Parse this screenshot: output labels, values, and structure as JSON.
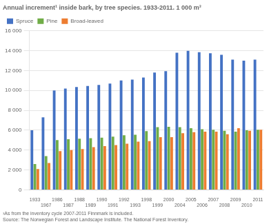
{
  "chart_data": {
    "type": "bar",
    "title": "Annual increment¹ inside bark, by tree species. 1933-2011. 1 000 m³",
    "annotations": [
      "¹As from the inventory cycle 2007-2011 Finnmark is included.",
      "Source: The Norwegian Forest and Landscape Institute. The National Forest Inventory."
    ],
    "categories": [
      "1933",
      "1967",
      "1986",
      "1987",
      "1988",
      "1989",
      "1990",
      "1991",
      "1992",
      "1993",
      "1998",
      "1999",
      "2000",
      "2004",
      "2005",
      "2006",
      "2007",
      "2008",
      "2009",
      "2010",
      "2011"
    ],
    "series": [
      {
        "name": "Spruce",
        "color": "#4472C4",
        "values": [
          6000,
          7300,
          10000,
          10200,
          10350,
          10450,
          10550,
          10700,
          11000,
          11100,
          11300,
          11800,
          11950,
          13800,
          14000,
          13850,
          13750,
          13600,
          13100,
          13000,
          13100
        ]
      },
      {
        "name": "Pine",
        "color": "#70AD47",
        "values": [
          2600,
          3400,
          5000,
          5100,
          5150,
          5200,
          5250,
          5350,
          5500,
          5550,
          5900,
          6300,
          6350,
          6300,
          6200,
          6100,
          6050,
          5950,
          5850,
          6000,
          6050
        ]
      },
      {
        "name": "Broad-leaved",
        "color": "#ED7D31",
        "values": [
          2100,
          2700,
          3900,
          4000,
          4100,
          4300,
          4400,
          4500,
          4650,
          4850,
          4900,
          5300,
          5300,
          5700,
          5800,
          5850,
          5850,
          5600,
          6200,
          5950,
          6050
        ]
      }
    ],
    "ylim": [
      0,
      16000
    ],
    "yticks": [
      0,
      {
        "value": 2000,
        "label": "2 000"
      },
      {
        "value": 4000,
        "label": "4 000"
      },
      {
        "value": 6000,
        "label": "6 000"
      },
      {
        "value": 8000,
        "label": "8 000"
      },
      {
        "value": 10000,
        "label": "10 000"
      },
      {
        "value": 12000,
        "label": "12 000"
      },
      {
        "value": 14000,
        "label": "14 000"
      },
      {
        "value": 16000,
        "label": "16 000"
      }
    ],
    "grid": true,
    "legend": "upper left"
  }
}
